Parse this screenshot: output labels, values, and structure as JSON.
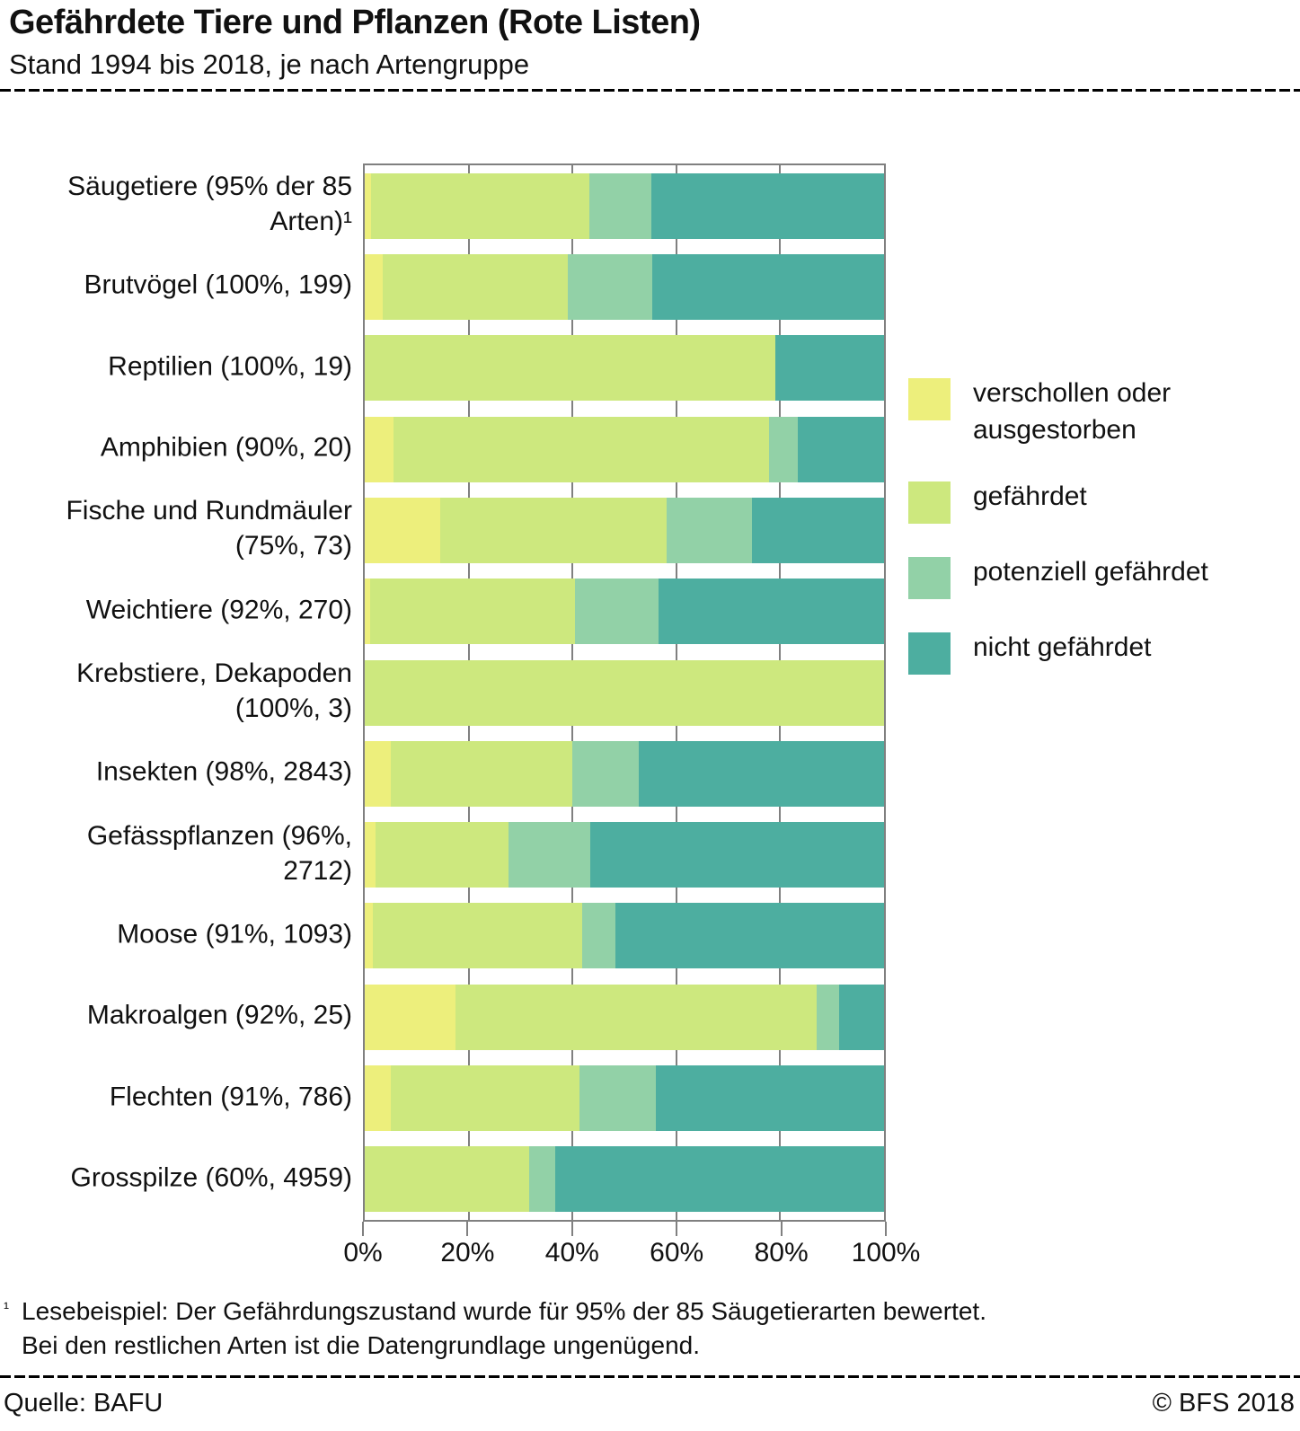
{
  "header": {
    "title": "Gefährdete Tiere und Pflanzen (Rote Listen)",
    "subtitle": "Stand 1994 bis 2018, je nach Artengruppe"
  },
  "footnote": {
    "marker": "¹",
    "line1": "Lesebeispiel: Der Gefährdungszustand wurde für 95% der 85 Säugetierarten bewertet.",
    "line2": "Bei den restlichen Arten ist die Datengrundlage ungenügend."
  },
  "footer": {
    "source": "Quelle: BAFU",
    "copyright": "© BFS 2018"
  },
  "colors": {
    "grid": "#808080",
    "text": "#111111",
    "rule": "#000000"
  },
  "chart_data": {
    "type": "bar",
    "stacked": true,
    "orientation": "horizontal",
    "grid": true,
    "legend_position": "right",
    "xlim": [
      0,
      100
    ],
    "x_ticks": [
      0,
      20,
      40,
      60,
      80,
      100
    ],
    "x_tick_labels": [
      "0%",
      "20%",
      "40%",
      "60%",
      "80%",
      "100%"
    ],
    "categories": [
      "Säugetiere (95% der 85\nArten)¹",
      "Brutvögel (100%, 199)",
      "Reptilien (100%, 19)",
      "Amphibien (90%, 20)",
      "Fische und Rundmäuler\n(75%, 73)",
      "Weichtiere (92%, 270)",
      "Krebstiere, Dekapoden\n(100%, 3)",
      "Insekten (98%, 2843)",
      "Gefässpflanzen (96%,\n2712)",
      "Moose (91%, 1093)",
      "Makroalgen (92%, 25)",
      "Flechten (91%, 786)",
      "Grosspilze (60%, 4959)"
    ],
    "series": [
      {
        "key": "verschollen-oder-ausgestorben",
        "name": "verschollen oder\nausgestorben",
        "color": "#EDEF7C",
        "values": [
          1.2,
          3.5,
          0,
          5.6,
          14.5,
          1,
          0,
          5,
          2,
          1.5,
          17.4,
          5,
          0
        ]
      },
      {
        "key": "gefaehrdet",
        "name": "gefährdet",
        "color": "#CDE87E",
        "values": [
          42,
          35.6,
          79,
          72.2,
          43.6,
          39.5,
          100,
          35,
          25.7,
          40.4,
          69.6,
          36.3,
          31.6
        ]
      },
      {
        "key": "potenziell-gefaehrdet",
        "name": "potenziell gefährdet",
        "color": "#92D1A7",
        "values": [
          12,
          16.2,
          0,
          5.6,
          16.4,
          16,
          0,
          12.8,
          15.7,
          6.3,
          4.3,
          14.7,
          5
        ]
      },
      {
        "key": "nicht-gefaehrdet",
        "name": "nicht gefährdet",
        "color": "#4DAEA0",
        "values": [
          44.8,
          44.7,
          21,
          16.6,
          25.5,
          43.5,
          0,
          47.2,
          56.6,
          51.8,
          8.7,
          44,
          63.4
        ]
      }
    ]
  }
}
